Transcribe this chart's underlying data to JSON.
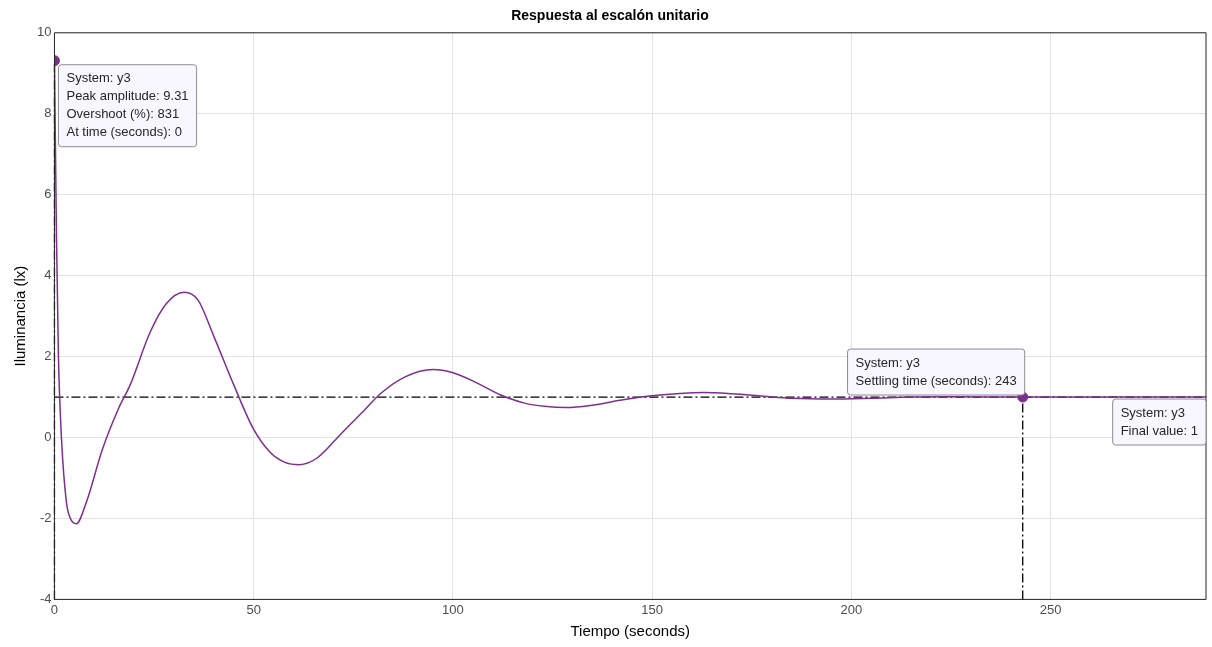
{
  "chart_data": {
    "type": "line",
    "title": "Respuesta al escalón unitario",
    "xlabel": "Tiempo (seconds)",
    "ylabel": "Iluminancia (lx)",
    "xlim": [
      0,
      289
    ],
    "ylim": [
      -4,
      10
    ],
    "xticks": [
      0,
      50,
      100,
      150,
      200,
      250
    ],
    "yticks": [
      -4,
      -2,
      0,
      2,
      4,
      6,
      8,
      10
    ],
    "grid": true,
    "legend": false,
    "series": [
      {
        "color": "#7e2f8e",
        "marker": "none",
        "x": [
          0,
          0.5,
          1,
          1.75,
          3,
          4,
          5.5,
          8,
          12,
          16,
          19,
          24,
          28,
          32.5,
          36,
          40,
          45,
          50,
          54,
          58,
          61.5,
          66,
          72,
          78,
          82,
          88,
          95,
          100,
          106,
          112,
          118,
          123,
          128.5,
          135,
          142,
          150,
          157,
          163,
          170,
          178,
          185,
          195,
          205,
          215,
          225,
          243,
          260,
          289
        ],
        "values": [
          9.31,
          5,
          2,
          0,
          -1.6,
          -2,
          -2.13,
          -1.6,
          -0.3,
          0.7,
          1.3,
          2.6,
          3.3,
          3.59,
          3.4,
          2.5,
          1.3,
          0.2,
          -0.35,
          -0.62,
          -0.67,
          -0.5,
          0.1,
          0.7,
          1.1,
          1.5,
          1.68,
          1.6,
          1.35,
          1.05,
          0.85,
          0.77,
          0.74,
          0.8,
          0.92,
          1.03,
          1.09,
          1.11,
          1.08,
          1.02,
          0.97,
          0.95,
          0.97,
          1,
          1.01,
          1,
          1,
          1
        ]
      },
      {
        "type": "scatter",
        "color": "#7e2f8e",
        "marker": "circle",
        "x": [
          0,
          243
        ],
        "values": [
          9.31,
          1
        ]
      }
    ],
    "ref_lines": [
      {
        "axis": "y",
        "value": 1,
        "color": "#000000",
        "line_style": "dashdot"
      },
      {
        "axis": "x",
        "value": 0,
        "color": "#000000",
        "line_style": "dashdot"
      },
      {
        "axis": "x",
        "value": 243,
        "color": "#000000",
        "line_style": "dashdot"
      }
    ],
    "annotations": [
      {
        "text": "System: y3\nPeak amplitude: 9.31\nOvershoot (%): 831\nAt time (seconds): 0",
        "x": 0,
        "y": 9.31
      },
      {
        "text": "System: y3\nSettling time (seconds): 243",
        "x": 243,
        "y": 1
      },
      {
        "text": "System: y3\nFinal value: 1",
        "x": 289,
        "y": 1
      }
    ]
  }
}
